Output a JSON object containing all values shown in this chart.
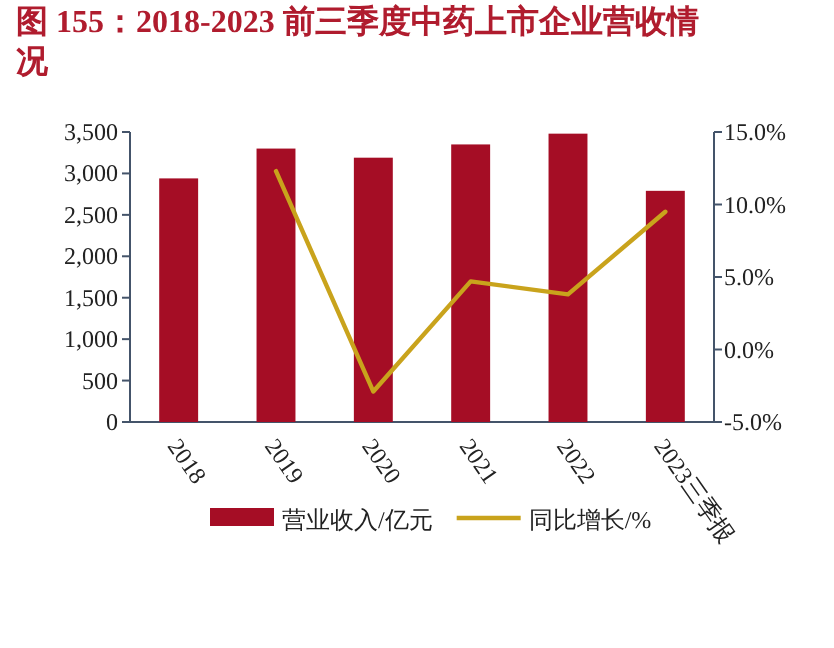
{
  "chart_data": {
    "type": "bar",
    "title": "图 155：2018-2023 前三季度中药上市企业营收情况",
    "categories": [
      "2018",
      "2019",
      "2020",
      "2021",
      "2022",
      "2023三季报"
    ],
    "series": [
      {
        "name": "营业收入/亿元",
        "color": "#a50d25",
        "values": [
          2940,
          3300,
          3190,
          3350,
          3480,
          2790
        ]
      },
      {
        "name": "同比增长/%",
        "type": "line",
        "axis": "y2",
        "color": "#c9a31c",
        "values": [
          null,
          12.3,
          -2.9,
          4.7,
          3.8,
          9.5
        ]
      }
    ],
    "ylim": [
      0,
      3500
    ],
    "yticks": [
      {
        "value": 0,
        "label": "0"
      },
      {
        "value": 500,
        "label": "500"
      },
      {
        "value": 1000,
        "label": "1,000"
      },
      {
        "value": 1500,
        "label": "1,500"
      },
      {
        "value": 2000,
        "label": "2,000"
      },
      {
        "value": 2500,
        "label": "2,500"
      },
      {
        "value": 3000,
        "label": "3,000"
      },
      {
        "value": 3500,
        "label": "3,500"
      }
    ],
    "y2lim": [
      -5,
      15
    ],
    "y2ticks": [
      {
        "value": -5,
        "label": "-5.0%"
      },
      {
        "value": 0,
        "label": "0.0%"
      },
      {
        "value": 5,
        "label": "5.0%"
      },
      {
        "value": 10,
        "label": "10.0%"
      },
      {
        "value": 15,
        "label": "15.0%"
      }
    ],
    "grid": false,
    "legend": "bottom"
  }
}
